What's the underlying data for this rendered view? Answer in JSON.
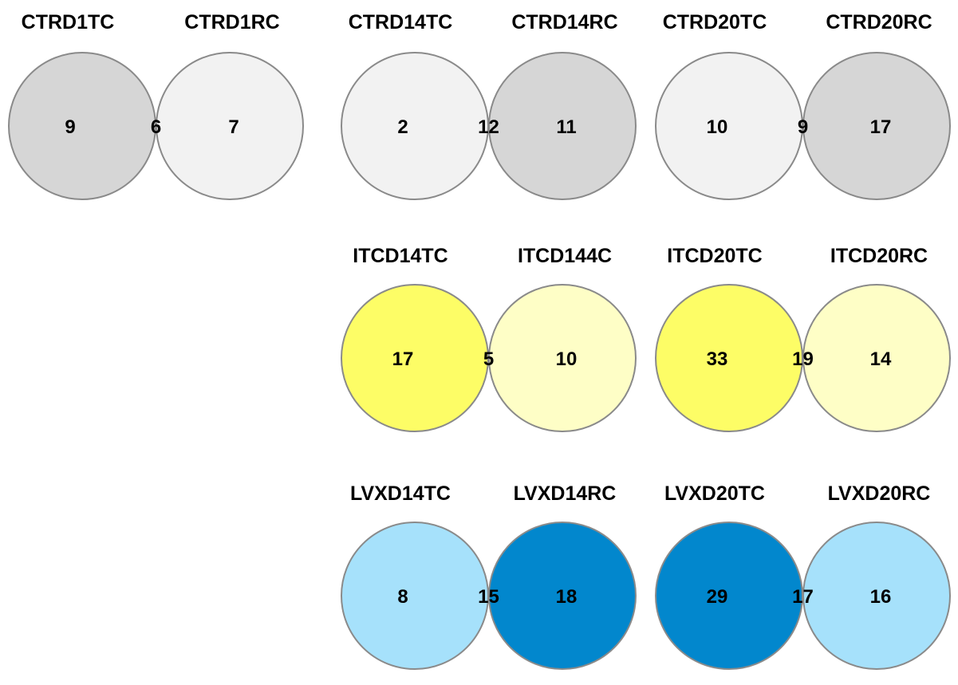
{
  "diagrams": [
    {
      "left_label": "CTRD1TC",
      "right_label": "CTRD1RC",
      "left_only": "9",
      "overlap": "6",
      "right_only": "7",
      "left_color": "#d6d6d6",
      "right_color": "#f2f2f2",
      "overlap_color": "#9c9c9c"
    },
    {
      "left_label": "CTRD14TC",
      "right_label": "CTRD14RC",
      "left_only": "2",
      "overlap": "12",
      "right_only": "11",
      "left_color": "#f2f2f2",
      "right_color": "#d6d6d6",
      "overlap_color": "#b8b8b8"
    },
    {
      "left_label": "CTRD20TC",
      "right_label": "CTRD20RC",
      "left_only": "10",
      "overlap": "9",
      "right_only": "17",
      "left_color": "#f2f2f2",
      "right_color": "#d6d6d6",
      "overlap_color": "#9c9c9c"
    },
    {
      "left_label": "ITCD14TC",
      "right_label": "ITCD144C",
      "left_only": "17",
      "overlap": "5",
      "right_only": "10",
      "left_color": "#fdfd66",
      "right_color": "#fefec6",
      "overlap_color": "#dab700"
    },
    {
      "left_label": "ITCD20TC",
      "right_label": "ITCD20RC",
      "left_only": "33",
      "overlap": "19",
      "right_only": "14",
      "left_color": "#fdfd66",
      "right_color": "#fefec6",
      "overlap_color": "#dab700"
    },
    {
      "left_label": "LVXD14TC",
      "right_label": "LVXD14RC",
      "left_only": "8",
      "overlap": "15",
      "right_only": "18",
      "left_color": "#a6e1fb",
      "right_color": "#0287cd",
      "overlap_color": "#004b6f"
    },
    {
      "left_label": "LVXD20TC",
      "right_label": "LVXD20RC",
      "left_only": "29",
      "overlap": "17",
      "right_only": "16",
      "left_color": "#0287cd",
      "right_color": "#a6e1fb",
      "overlap_color": "#004b6f"
    }
  ]
}
